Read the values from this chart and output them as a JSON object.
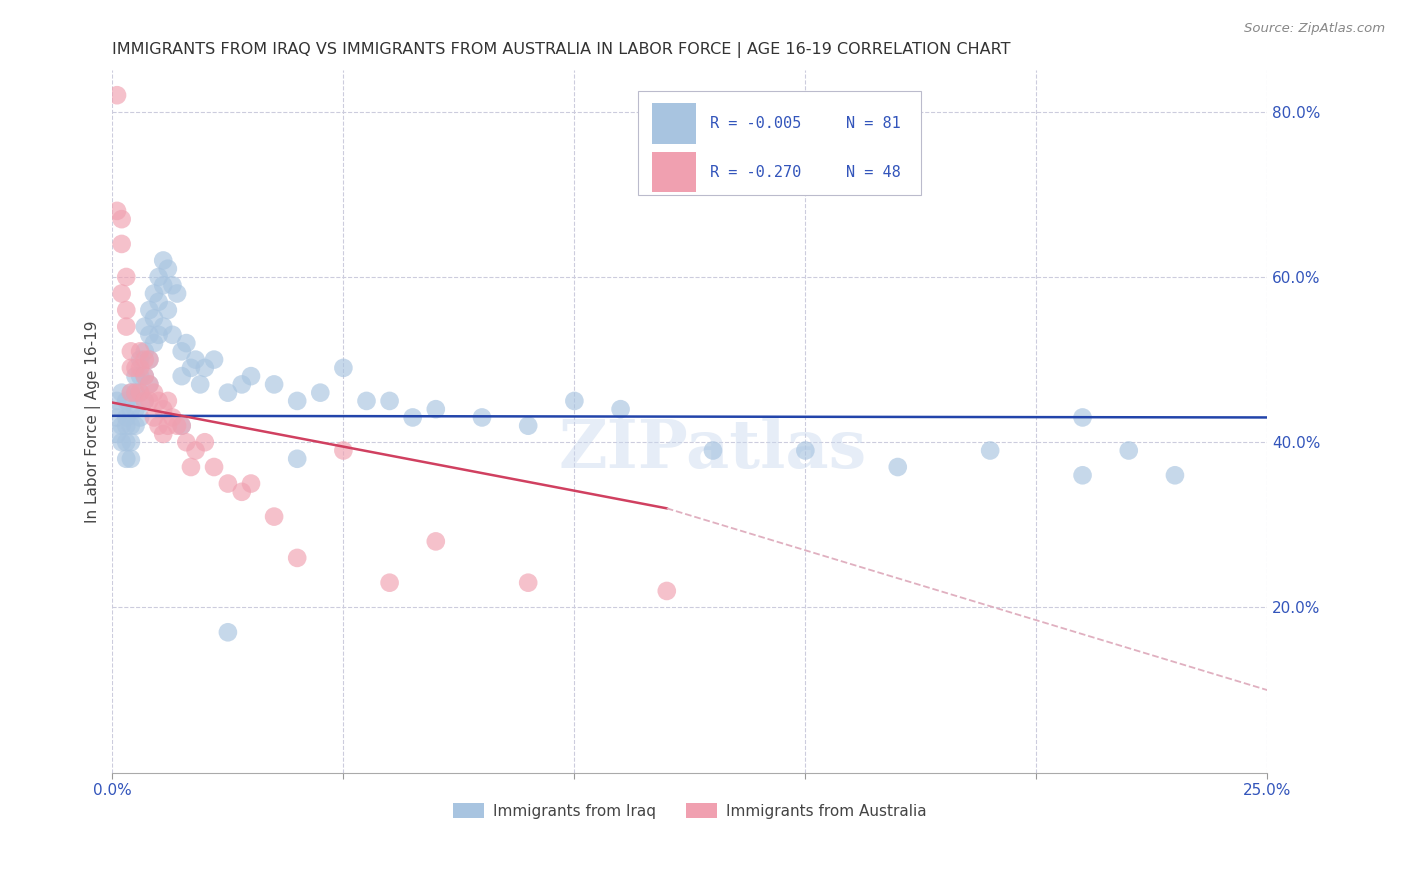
{
  "title": "IMMIGRANTS FROM IRAQ VS IMMIGRANTS FROM AUSTRALIA IN LABOR FORCE | AGE 16-19 CORRELATION CHART",
  "source": "Source: ZipAtlas.com",
  "ylabel": "In Labor Force | Age 16-19",
  "x_label_iraq": "Immigrants from Iraq",
  "x_label_australia": "Immigrants from Australia",
  "xlim": [
    0.0,
    0.25
  ],
  "ylim": [
    0.0,
    0.85
  ],
  "x_ticks": [
    0.0,
    0.05,
    0.1,
    0.15,
    0.2,
    0.25
  ],
  "x_tick_labels": [
    "0.0%",
    "",
    "",
    "",
    "",
    "25.0%"
  ],
  "y_ticks_right": [
    0.2,
    0.4,
    0.6,
    0.8
  ],
  "y_tick_labels_right": [
    "20.0%",
    "40.0%",
    "60.0%",
    "80.0%"
  ],
  "R_iraq": -0.005,
  "N_iraq": 81,
  "R_australia": -0.27,
  "N_australia": 48,
  "iraq_color": "#a8c4e0",
  "australia_color": "#f0a0b0",
  "iraq_line_color": "#2244aa",
  "australia_line_color": "#d04060",
  "australia_dash_color": "#e0b0c0",
  "legend_text_color": "#3355bb",
  "title_color": "#333333",
  "grid_color": "#ccccdd",
  "watermark": "ZIPatlas",
  "iraq_line_y0": 0.432,
  "iraq_line_y1": 0.43,
  "aus_line_y0": 0.448,
  "aus_line_y1_solid": 0.32,
  "aus_line_x1_solid": 0.12,
  "aus_line_y2": 0.1,
  "aus_line_x2": 0.25,
  "iraq_x": [
    0.001,
    0.001,
    0.001,
    0.002,
    0.002,
    0.002,
    0.002,
    0.003,
    0.003,
    0.003,
    0.003,
    0.003,
    0.004,
    0.004,
    0.004,
    0.004,
    0.004,
    0.005,
    0.005,
    0.005,
    0.005,
    0.006,
    0.006,
    0.006,
    0.006,
    0.007,
    0.007,
    0.007,
    0.007,
    0.008,
    0.008,
    0.008,
    0.008,
    0.009,
    0.009,
    0.009,
    0.01,
    0.01,
    0.01,
    0.011,
    0.011,
    0.011,
    0.012,
    0.012,
    0.013,
    0.013,
    0.014,
    0.015,
    0.015,
    0.016,
    0.017,
    0.018,
    0.019,
    0.02,
    0.022,
    0.025,
    0.028,
    0.03,
    0.035,
    0.04,
    0.045,
    0.05,
    0.055,
    0.06,
    0.065,
    0.07,
    0.08,
    0.09,
    0.1,
    0.11,
    0.13,
    0.15,
    0.17,
    0.19,
    0.21,
    0.22,
    0.23,
    0.21,
    0.015,
    0.04,
    0.025
  ],
  "iraq_y": [
    0.43,
    0.41,
    0.45,
    0.44,
    0.42,
    0.4,
    0.46,
    0.45,
    0.43,
    0.42,
    0.4,
    0.38,
    0.46,
    0.44,
    0.42,
    0.4,
    0.38,
    0.48,
    0.46,
    0.44,
    0.42,
    0.5,
    0.48,
    0.46,
    0.43,
    0.54,
    0.51,
    0.48,
    0.45,
    0.56,
    0.53,
    0.5,
    0.47,
    0.58,
    0.55,
    0.52,
    0.6,
    0.57,
    0.53,
    0.62,
    0.59,
    0.54,
    0.61,
    0.56,
    0.59,
    0.53,
    0.58,
    0.51,
    0.48,
    0.52,
    0.49,
    0.5,
    0.47,
    0.49,
    0.5,
    0.46,
    0.47,
    0.48,
    0.47,
    0.45,
    0.46,
    0.49,
    0.45,
    0.45,
    0.43,
    0.44,
    0.43,
    0.42,
    0.45,
    0.44,
    0.39,
    0.39,
    0.37,
    0.39,
    0.36,
    0.39,
    0.36,
    0.43,
    0.42,
    0.38,
    0.17
  ],
  "aus_x": [
    0.001,
    0.001,
    0.002,
    0.002,
    0.002,
    0.003,
    0.003,
    0.003,
    0.004,
    0.004,
    0.004,
    0.005,
    0.005,
    0.006,
    0.006,
    0.006,
    0.007,
    0.007,
    0.007,
    0.008,
    0.008,
    0.008,
    0.009,
    0.009,
    0.01,
    0.01,
    0.011,
    0.011,
    0.012,
    0.012,
    0.013,
    0.014,
    0.015,
    0.016,
    0.017,
    0.018,
    0.02,
    0.022,
    0.025,
    0.028,
    0.03,
    0.035,
    0.04,
    0.05,
    0.06,
    0.07,
    0.09,
    0.12
  ],
  "aus_y": [
    0.82,
    0.68,
    0.67,
    0.64,
    0.58,
    0.56,
    0.6,
    0.54,
    0.51,
    0.49,
    0.46,
    0.49,
    0.46,
    0.49,
    0.51,
    0.46,
    0.5,
    0.48,
    0.45,
    0.47,
    0.5,
    0.45,
    0.46,
    0.43,
    0.45,
    0.42,
    0.44,
    0.41,
    0.45,
    0.42,
    0.43,
    0.42,
    0.42,
    0.4,
    0.37,
    0.39,
    0.4,
    0.37,
    0.35,
    0.34,
    0.35,
    0.31,
    0.26,
    0.39,
    0.23,
    0.28,
    0.23,
    0.22
  ]
}
